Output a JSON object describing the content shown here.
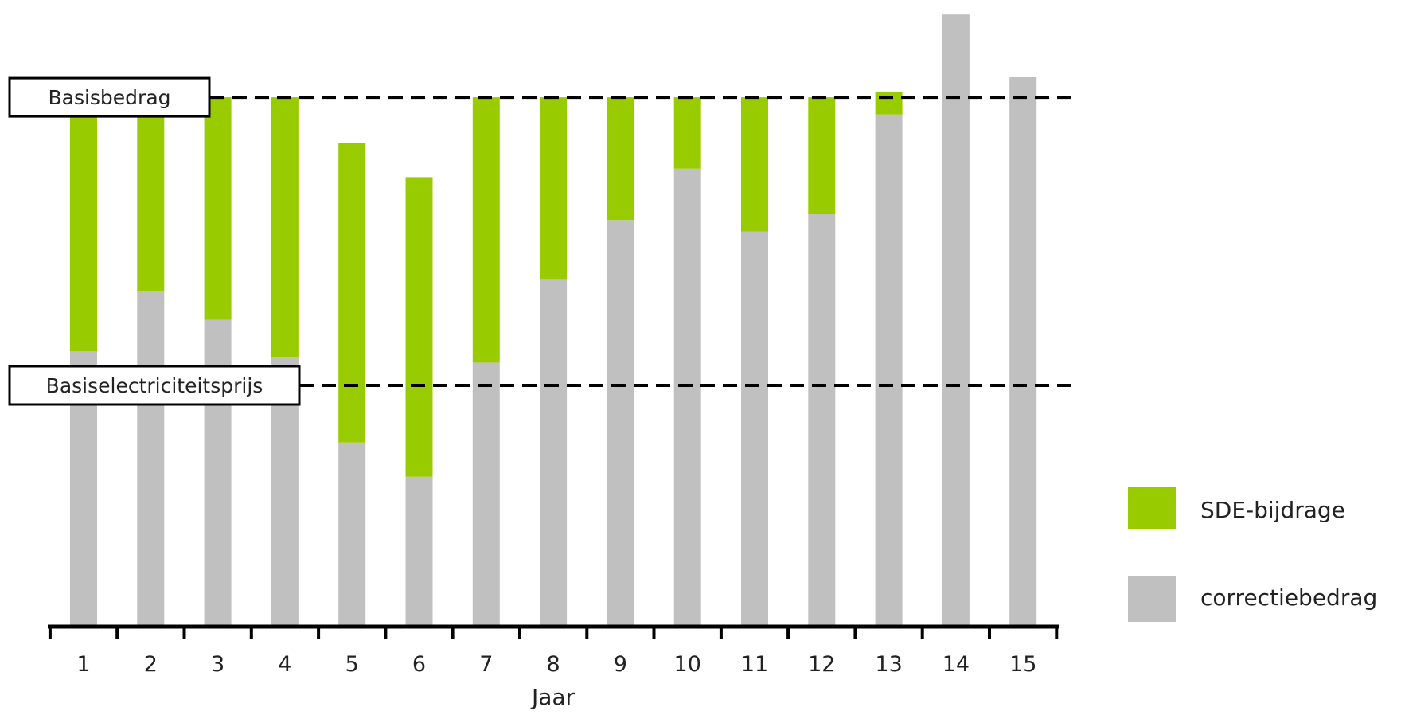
{
  "chart_data": {
    "type": "bar",
    "stacked": true,
    "xlabel": "Jaar",
    "ylabel": "",
    "categories": [
      "1",
      "2",
      "3",
      "4",
      "5",
      "6",
      "7",
      "8",
      "9",
      "10",
      "11",
      "12",
      "13",
      "14",
      "15"
    ],
    "series": [
      {
        "name": "correctiebedrag",
        "color": "#c0c0c0",
        "values": [
          48,
          58.5,
          53.5,
          47,
          32,
          26,
          46,
          60.5,
          71,
          80,
          69,
          72,
          89.5,
          107,
          96
        ]
      },
      {
        "name": "SDE-bijdrage",
        "color": "#99cc00",
        "values": [
          44.5,
          34,
          39,
          45.5,
          52.5,
          52.5,
          46.5,
          32,
          21.5,
          12.5,
          23.5,
          20.5,
          4,
          0,
          0
        ]
      }
    ],
    "reference_lines": [
      {
        "label": "Basisbedrag",
        "value": 92.5
      },
      {
        "label": "Basiselectriciteitsprijs",
        "value": 42
      }
    ],
    "ylim": [
      0,
      108
    ],
    "legend": {
      "position": "right",
      "entries": [
        "SDE-bijdrage",
        "correctiebedrag"
      ]
    },
    "grid": false
  }
}
